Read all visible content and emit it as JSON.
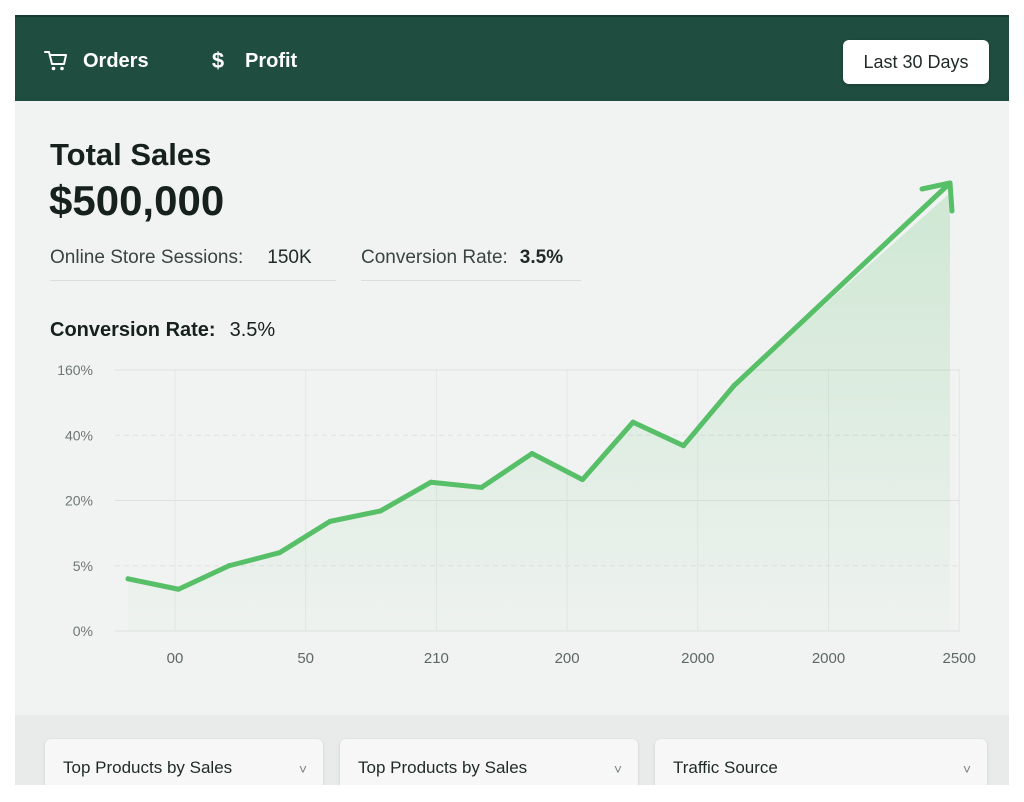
{
  "header": {
    "nav": [
      {
        "label": "Orders",
        "icon": "cart-icon"
      },
      {
        "label": "Profit",
        "icon": "dollar-icon"
      }
    ],
    "date_range": "Last 30 Days",
    "bg_color": "#1f4d3f"
  },
  "summary": {
    "title": "Total Sales",
    "total": "$500,000",
    "sessions_label": "Online Store Sessions:",
    "sessions_value": "150K",
    "conversion_label": "Conversion Rate:",
    "conversion_value": "3.5%"
  },
  "chart_section": {
    "label": "Conversion Rate:",
    "value": "3.5%"
  },
  "chart_data": {
    "type": "line",
    "title": "",
    "xlabel": "",
    "ylabel": "",
    "y_ticks": [
      "160%",
      "40%",
      "20%",
      "5%",
      "0%"
    ],
    "x_ticks": [
      "00",
      "50",
      "210",
      "200",
      "2000",
      "2000",
      "2500"
    ],
    "series": [
      {
        "color": "#57bf67",
        "values": [
          1.0,
          0.8,
          1.25,
          1.5,
          2.1,
          2.3,
          2.85,
          2.75,
          3.4,
          2.9,
          4.0,
          3.55,
          4.7
        ]
      }
    ],
    "trend_arrow": true,
    "grid": true,
    "line_color": "#57bf67"
  },
  "cards": [
    {
      "title": "Top Products by Sales",
      "caret": "˅"
    },
    {
      "title": "Top Products by Sales",
      "caret": "˅"
    },
    {
      "title": "Traffic Source",
      "caret": "˅"
    }
  ]
}
